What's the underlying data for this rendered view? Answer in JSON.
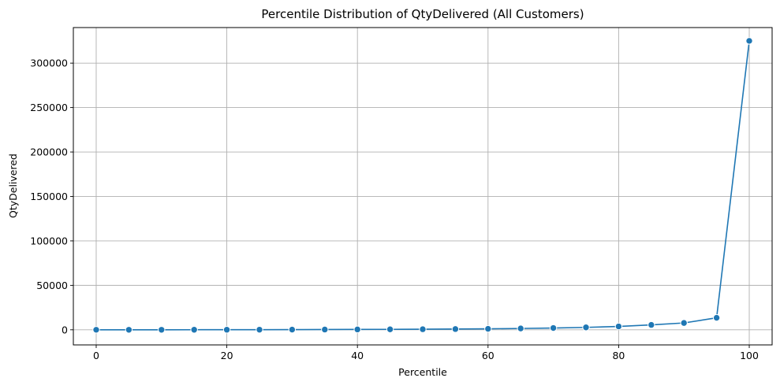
{
  "chart_data": {
    "type": "line",
    "title": "Percentile Distribution of QtyDelivered (All Customers)",
    "xlabel": "Percentile",
    "ylabel": "QtyDelivered",
    "xlim": [
      -3.5,
      103.5
    ],
    "ylim": [
      -17000,
      340000
    ],
    "xticks": [
      0,
      20,
      40,
      60,
      80,
      100
    ],
    "yticks": [
      0,
      50000,
      100000,
      150000,
      200000,
      250000,
      300000
    ],
    "grid": true,
    "series": [
      {
        "color": "#1f77b4",
        "marker": "circle",
        "x": [
          0,
          5,
          10,
          15,
          20,
          25,
          30,
          35,
          40,
          45,
          50,
          55,
          60,
          65,
          70,
          75,
          80,
          85,
          90,
          95,
          100
        ],
        "values": [
          0,
          10,
          30,
          60,
          100,
          150,
          220,
          300,
          400,
          500,
          650,
          850,
          1100,
          1500,
          2000,
          2700,
          3800,
          5500,
          7700,
          13500,
          325000
        ]
      }
    ]
  }
}
